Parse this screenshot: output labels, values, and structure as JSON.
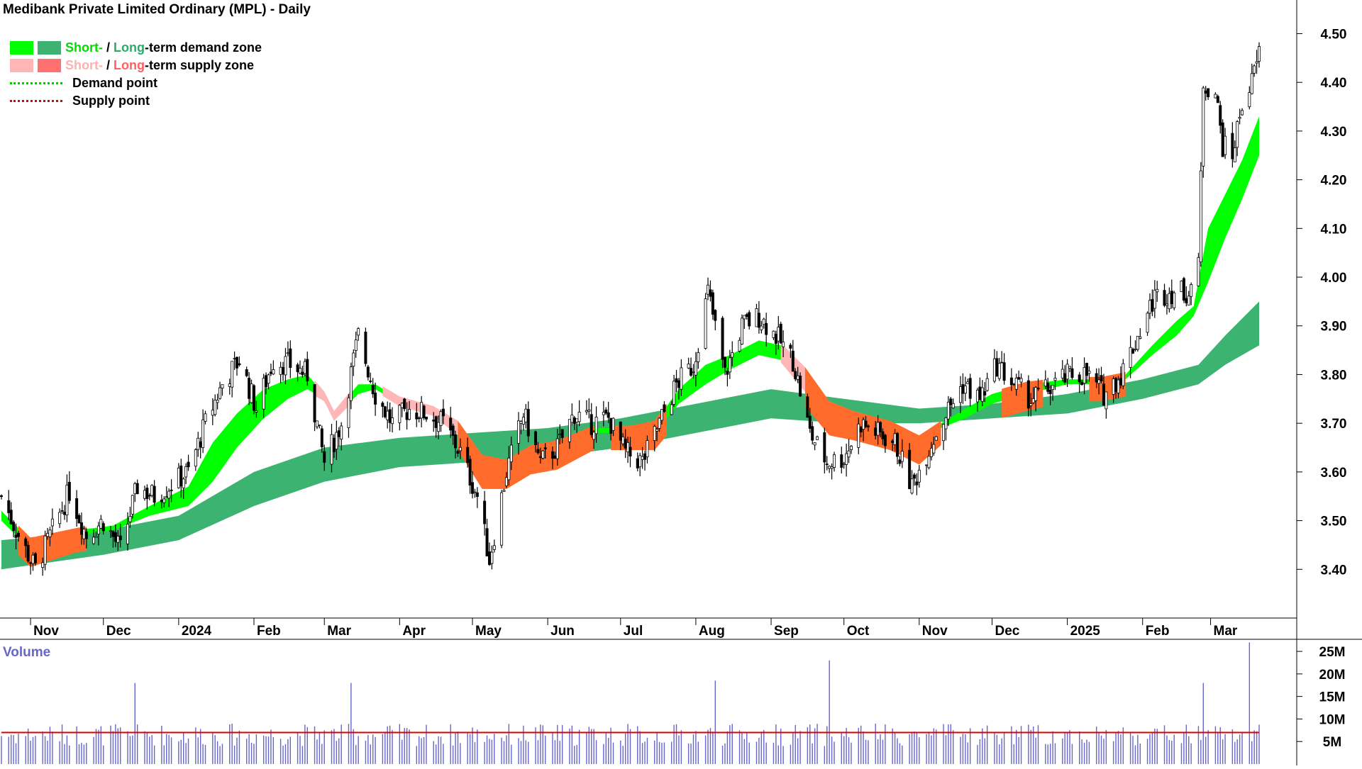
{
  "title": "Medibank Private Limited Ordinary (MPL) - Daily",
  "legend": {
    "demand_zone": {
      "short": "Short-",
      "sep": " / ",
      "long": "Long",
      "rest": "-term demand zone"
    },
    "supply_zone": {
      "short": "Short-",
      "sep": " / ",
      "long": "Long",
      "rest": "-term supply zone"
    },
    "demand_point": "Demand point",
    "supply_point": "Supply point"
  },
  "volume_label": "Volume",
  "colors": {
    "short_demand": "#00ff00",
    "long_demand": "#3cb371",
    "short_supply": "#ffb6b6",
    "long_supply": "#ff6b2b",
    "candle": "#000000",
    "volume_bar": "#6666cc",
    "volume_ma": "#dd0000",
    "demand_point": "#00cc00",
    "supply_point": "#dd0000"
  },
  "chart_data": [
    {
      "type": "line",
      "subtype": "candlestick",
      "title": "Medibank Private Limited Ordinary (MPL) - Daily",
      "ylim": [
        3.3,
        4.54
      ],
      "y_ticks": [
        "3.40",
        "3.50",
        "3.60",
        "3.70",
        "3.80",
        "3.90",
        "4.00",
        "4.10",
        "4.20",
        "4.30",
        "4.40",
        "4.50"
      ],
      "x_ticks": [
        "Nov",
        "Dec",
        "2024",
        "Feb",
        "Mar",
        "Apr",
        "May",
        "Jun",
        "Jul",
        "Aug",
        "Sep",
        "Oct",
        "Nov",
        "Dec",
        "2025",
        "Feb",
        "Mar"
      ],
      "x_tick_dates": [
        "2023-11-01",
        "2023-12-01",
        "2024-01-01",
        "2024-02-01",
        "2024-03-01",
        "2024-04-01",
        "2024-05-01",
        "2024-06-01",
        "2024-07-01",
        "2024-08-01",
        "2024-09-01",
        "2024-10-01",
        "2024-11-01",
        "2024-12-01",
        "2025-01-01",
        "2025-02-01",
        "2025-03-01"
      ],
      "x_range": [
        "2023-10-20",
        "2025-03-21"
      ],
      "close_path": [
        [
          "2023-10-20",
          3.55
        ],
        [
          "2023-10-27",
          3.47
        ],
        [
          "2023-11-03",
          3.4
        ],
        [
          "2023-11-10",
          3.48
        ],
        [
          "2023-11-17",
          3.56
        ],
        [
          "2023-11-24",
          3.47
        ],
        [
          "2023-12-01",
          3.5
        ],
        [
          "2023-12-08",
          3.44
        ],
        [
          "2023-12-15",
          3.57
        ],
        [
          "2023-12-22",
          3.55
        ],
        [
          "2024-01-05",
          3.6
        ],
        [
          "2024-01-12",
          3.7
        ],
        [
          "2024-01-19",
          3.78
        ],
        [
          "2024-01-26",
          3.83
        ],
        [
          "2024-02-02",
          3.73
        ],
        [
          "2024-02-09",
          3.83
        ],
        [
          "2024-02-16",
          3.82
        ],
        [
          "2024-02-23",
          3.8
        ],
        [
          "2024-03-01",
          3.62
        ],
        [
          "2024-03-08",
          3.7
        ],
        [
          "2024-03-15",
          3.88
        ],
        [
          "2024-03-22",
          3.76
        ],
        [
          "2024-03-29",
          3.7
        ],
        [
          "2024-04-05",
          3.73
        ],
        [
          "2024-04-12",
          3.72
        ],
        [
          "2024-04-19",
          3.7
        ],
        [
          "2024-04-26",
          3.64
        ],
        [
          "2024-05-03",
          3.55
        ],
        [
          "2024-05-08",
          3.42
        ],
        [
          "2024-05-15",
          3.6
        ],
        [
          "2024-05-22",
          3.72
        ],
        [
          "2024-05-29",
          3.62
        ],
        [
          "2024-06-05",
          3.65
        ],
        [
          "2024-06-12",
          3.72
        ],
        [
          "2024-06-19",
          3.7
        ],
        [
          "2024-06-26",
          3.71
        ],
        [
          "2024-07-03",
          3.64
        ],
        [
          "2024-07-10",
          3.62
        ],
        [
          "2024-07-17",
          3.7
        ],
        [
          "2024-07-24",
          3.78
        ],
        [
          "2024-07-31",
          3.82
        ],
        [
          "2024-08-06",
          3.97
        ],
        [
          "2024-08-13",
          3.8
        ],
        [
          "2024-08-20",
          3.9
        ],
        [
          "2024-08-27",
          3.92
        ],
        [
          "2024-09-03",
          3.88
        ],
        [
          "2024-09-10",
          3.83
        ],
        [
          "2024-09-17",
          3.68
        ],
        [
          "2024-09-24",
          3.62
        ],
        [
          "2024-10-01",
          3.63
        ],
        [
          "2024-10-08",
          3.7
        ],
        [
          "2024-10-15",
          3.68
        ],
        [
          "2024-10-22",
          3.66
        ],
        [
          "2024-10-29",
          3.57
        ],
        [
          "2024-11-05",
          3.65
        ],
        [
          "2024-11-12",
          3.72
        ],
        [
          "2024-11-19",
          3.78
        ],
        [
          "2024-11-26",
          3.75
        ],
        [
          "2024-12-03",
          3.82
        ],
        [
          "2024-12-10",
          3.78
        ],
        [
          "2024-12-17",
          3.75
        ],
        [
          "2024-12-24",
          3.77
        ],
        [
          "2025-01-02",
          3.8
        ],
        [
          "2025-01-09",
          3.8
        ],
        [
          "2025-01-16",
          3.76
        ],
        [
          "2025-01-23",
          3.8
        ],
        [
          "2025-01-30",
          3.88
        ],
        [
          "2025-02-06",
          3.96
        ],
        [
          "2025-02-13",
          3.97
        ],
        [
          "2025-02-20",
          3.97
        ],
        [
          "2025-02-24",
          4.02
        ],
        [
          "2025-02-26",
          4.4
        ],
        [
          "2025-03-03",
          4.38
        ],
        [
          "2025-03-06",
          4.27
        ],
        [
          "2025-03-10",
          4.25
        ],
        [
          "2025-03-14",
          4.36
        ],
        [
          "2025-03-18",
          4.4
        ],
        [
          "2025-03-21",
          4.46
        ]
      ],
      "short_term_zone": [
        [
          "2023-10-20",
          3.52,
          3.5
        ],
        [
          "2023-11-01",
          3.46,
          3.44
        ],
        [
          "2023-11-20",
          3.48,
          3.47
        ],
        [
          "2023-12-05",
          3.49,
          3.48
        ],
        [
          "2023-12-20",
          3.53,
          3.51
        ],
        [
          "2024-01-05",
          3.57,
          3.53
        ],
        [
          "2024-01-15",
          3.66,
          3.58
        ],
        [
          "2024-01-25",
          3.72,
          3.65
        ],
        [
          "2024-02-05",
          3.77,
          3.71
        ],
        [
          "2024-02-15",
          3.79,
          3.75
        ],
        [
          "2024-02-23",
          3.8,
          3.77
        ],
        [
          "2024-03-01",
          3.76,
          3.75
        ],
        [
          "2024-03-05",
          3.72,
          3.71
        ],
        [
          "2024-03-15",
          3.78,
          3.76
        ],
        [
          "2024-03-22",
          3.78,
          3.77
        ],
        [
          "2024-04-01",
          3.75,
          3.74
        ],
        [
          "2024-04-15",
          3.73,
          3.72
        ],
        [
          "2024-04-25",
          3.7,
          3.68
        ],
        [
          "2024-05-05",
          3.63,
          3.6
        ],
        [
          "2024-05-15",
          3.62,
          3.6
        ],
        [
          "2024-05-25",
          3.65,
          3.63
        ],
        [
          "2024-06-05",
          3.66,
          3.64
        ],
        [
          "2024-06-20",
          3.69,
          3.68
        ],
        [
          "2024-07-05",
          3.69,
          3.68
        ],
        [
          "2024-07-15",
          3.7,
          3.68
        ],
        [
          "2024-07-25",
          3.77,
          3.74
        ],
        [
          "2024-08-05",
          3.82,
          3.78
        ],
        [
          "2024-08-15",
          3.84,
          3.81
        ],
        [
          "2024-08-27",
          3.87,
          3.84
        ],
        [
          "2024-09-05",
          3.86,
          3.83
        ],
        [
          "2024-09-15",
          3.81,
          3.77
        ],
        [
          "2024-09-25",
          3.74,
          3.71
        ],
        [
          "2024-10-05",
          3.72,
          3.7
        ],
        [
          "2024-10-20",
          3.7,
          3.68
        ],
        [
          "2024-11-01",
          3.67,
          3.65
        ],
        [
          "2024-11-10",
          3.7,
          3.69
        ],
        [
          "2024-11-20",
          3.73,
          3.71
        ],
        [
          "2024-12-01",
          3.76,
          3.74
        ],
        [
          "2024-12-15",
          3.78,
          3.76
        ],
        [
          "2025-01-01",
          3.79,
          3.78
        ],
        [
          "2025-01-15",
          3.79,
          3.78
        ],
        [
          "2025-01-25",
          3.8,
          3.79
        ],
        [
          "2025-02-05",
          3.86,
          3.84
        ],
        [
          "2025-02-15",
          3.91,
          3.88
        ],
        [
          "2025-02-22",
          3.94,
          3.92
        ],
        [
          "2025-02-28",
          4.1,
          3.99
        ],
        [
          "2025-03-07",
          4.17,
          4.08
        ],
        [
          "2025-03-14",
          4.24,
          4.16
        ],
        [
          "2025-03-21",
          4.33,
          4.25
        ]
      ],
      "long_term_zone": [
        [
          "2023-10-20",
          3.46,
          3.4
        ],
        [
          "2023-12-01",
          3.48,
          3.43
        ],
        [
          "2024-01-01",
          3.51,
          3.46
        ],
        [
          "2024-02-01",
          3.6,
          3.53
        ],
        [
          "2024-03-01",
          3.65,
          3.58
        ],
        [
          "2024-04-01",
          3.67,
          3.61
        ],
        [
          "2024-05-01",
          3.68,
          3.62
        ],
        [
          "2024-06-01",
          3.69,
          3.63
        ],
        [
          "2024-07-01",
          3.71,
          3.65
        ],
        [
          "2024-08-01",
          3.74,
          3.68
        ],
        [
          "2024-09-01",
          3.77,
          3.71
        ],
        [
          "2024-10-01",
          3.75,
          3.7
        ],
        [
          "2024-11-01",
          3.73,
          3.7
        ],
        [
          "2024-12-01",
          3.74,
          3.71
        ],
        [
          "2025-01-01",
          3.76,
          3.72
        ],
        [
          "2025-02-01",
          3.79,
          3.75
        ],
        [
          "2025-02-24",
          3.82,
          3.78
        ],
        [
          "2025-03-07",
          3.88,
          3.82
        ],
        [
          "2025-03-21",
          3.95,
          3.86
        ]
      ]
    },
    {
      "type": "bar",
      "title": "Volume",
      "ylim": [
        0,
        28000000
      ],
      "y_ticks": [
        "5M",
        "10M",
        "15M",
        "20M",
        "25M"
      ],
      "notable_spikes": [
        [
          "2023-12-14",
          18000000
        ],
        [
          "2024-03-12",
          18000000
        ],
        [
          "2024-08-09",
          18500000
        ],
        [
          "2024-09-25",
          23000000
        ],
        [
          "2025-02-26",
          18000000
        ],
        [
          "2025-03-17",
          27000000
        ]
      ],
      "average_volume": 7000000
    }
  ]
}
